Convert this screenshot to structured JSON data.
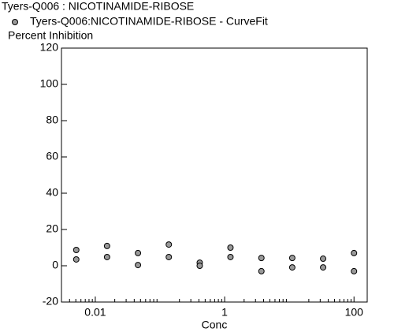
{
  "chart_data": {
    "type": "scatter",
    "log_x": true,
    "title": "Tyers-Q006  : NICOTINAMIDE-RIBOSE",
    "y_label": "Percent Inhibition",
    "x_label": "Conc",
    "series": [
      {
        "name": "Tyers-Q006:NICOTINAMIDE-RIBOSE - CurveFit",
        "color": "#999999",
        "x": [
          0.00508,
          0.00508,
          0.0152,
          0.0152,
          0.0457,
          0.0457,
          0.137,
          0.137,
          0.412,
          0.412,
          1.23,
          1.23,
          3.7,
          3.7,
          11.1,
          11.1,
          33.3,
          33.3,
          100,
          100
        ],
        "values": [
          8.7,
          3.5,
          10.9,
          4.8,
          7.0,
          0.4,
          11.7,
          4.8,
          1.7,
          0,
          10,
          4.8,
          4.3,
          -3,
          4.3,
          -0.9,
          3.9,
          -0.9,
          7,
          -3
        ]
      }
    ],
    "xlim": [
      0.003,
      160
    ],
    "xticks": [
      0.01,
      1,
      100
    ],
    "ylim": [
      -20,
      120
    ],
    "yticks": [
      -20,
      0,
      20,
      40,
      60,
      80,
      100,
      120
    ]
  }
}
